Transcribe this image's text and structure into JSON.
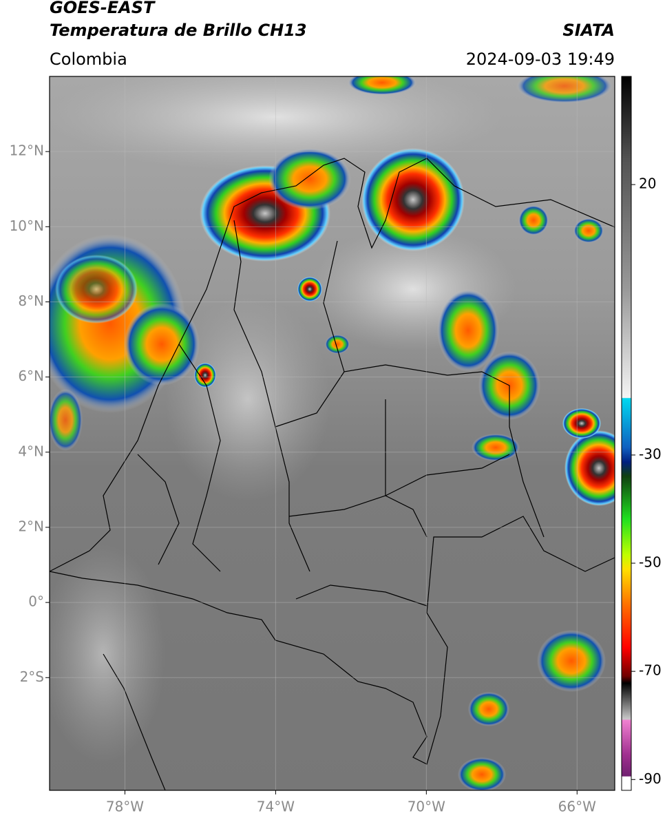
{
  "header": {
    "title_line1": "GOES-EAST",
    "title_line2": "Temperatura de Brillo CH13",
    "source": "SIATA",
    "region": "Colombia",
    "datetime": "2024-09-03 19:49"
  },
  "map": {
    "xlim": [
      -80,
      -65
    ],
    "ylim": [
      -5,
      14
    ],
    "xticks": [
      {
        "value": -78,
        "label": "78°W"
      },
      {
        "value": -74,
        "label": "74°W"
      },
      {
        "value": -70,
        "label": "70°W"
      },
      {
        "value": -66,
        "label": "66°W"
      }
    ],
    "yticks": [
      {
        "value": 12,
        "label": "12°N"
      },
      {
        "value": 10,
        "label": "10°N"
      },
      {
        "value": 8,
        "label": "8°N"
      },
      {
        "value": 6,
        "label": "6°N"
      },
      {
        "value": 4,
        "label": "4°N"
      },
      {
        "value": 2,
        "label": "2°N"
      },
      {
        "value": 0,
        "label": "0°"
      },
      {
        "value": -2,
        "label": "2°S"
      }
    ],
    "grid": true
  },
  "colorbar": {
    "lim": [
      -92,
      40
    ],
    "ticks": [
      20,
      -30,
      -50,
      -70,
      -90
    ]
  }
}
